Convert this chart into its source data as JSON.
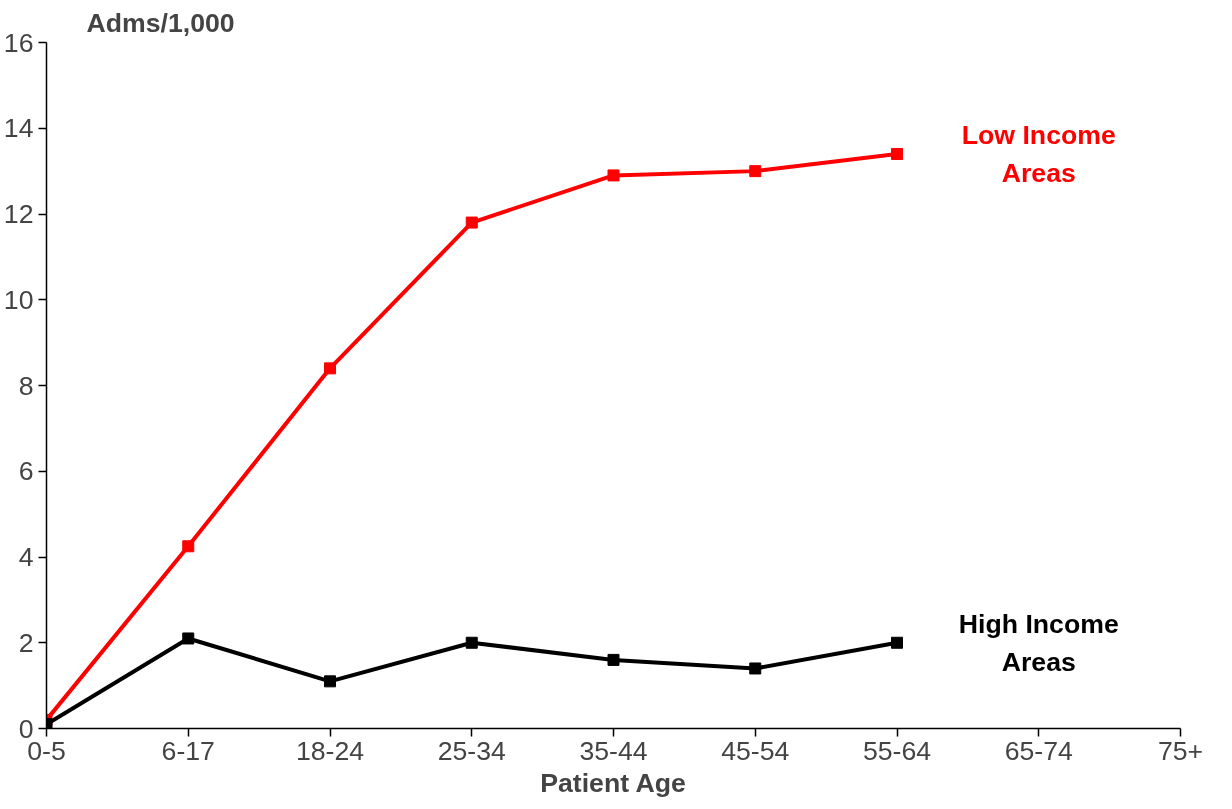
{
  "chart_data": {
    "type": "line",
    "ylabel": "Adms/1,000",
    "xlabel": "Patient Age",
    "categories": [
      "0-5",
      "6-17",
      "18-24",
      "25-34",
      "35-44",
      "45-54",
      "55-64",
      "65-74",
      "75+"
    ],
    "series": [
      {
        "name": "Low Income Areas",
        "color": "#ff0000",
        "values": [
          0.2,
          4.25,
          8.4,
          11.8,
          12.9,
          13.0,
          13.4,
          null,
          null
        ]
      },
      {
        "name": "High Income Areas",
        "color": "#000000",
        "values": [
          0.1,
          2.1,
          1.1,
          2.0,
          1.6,
          1.4,
          2.0,
          null,
          null
        ]
      }
    ],
    "ylim": [
      0,
      16
    ],
    "yticks": [
      0,
      2,
      4,
      6,
      8,
      10,
      12,
      14,
      16
    ],
    "grid": false,
    "legend": false,
    "marker": "square",
    "line_style": "solid"
  }
}
